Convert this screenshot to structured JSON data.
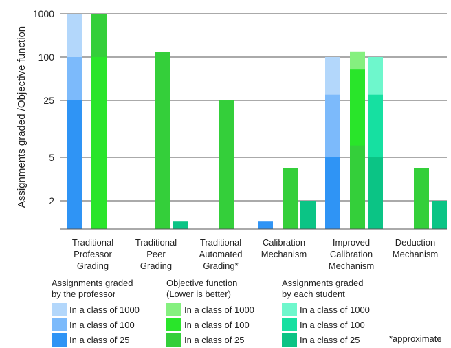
{
  "chart_data": {
    "type": "bar",
    "ylabel": "Assignments graded /Objective function",
    "y_scale": "log",
    "y_ticks": [
      {
        "value": 1000,
        "label": "1000"
      },
      {
        "value": 100,
        "label": "100"
      },
      {
        "value": 25,
        "label": "25"
      },
      {
        "value": 5,
        "label": "5"
      },
      {
        "value": 2,
        "label": "2"
      }
    ],
    "grid": true,
    "categories": [
      {
        "lines": [
          "Traditional",
          "Professor",
          "Grading"
        ]
      },
      {
        "lines": [
          "Traditional",
          "Peer",
          "Grading"
        ]
      },
      {
        "lines": [
          "Traditional",
          "Automated",
          "Grading*"
        ]
      },
      {
        "lines": [
          "Calibration",
          "Mechanism"
        ]
      },
      {
        "lines": [
          "Improved",
          "Calibration",
          "Mechanism"
        ]
      },
      {
        "lines": [
          "Deduction",
          "Mechanism"
        ]
      }
    ],
    "groups": [
      {
        "title_lines": [
          "Assignments graded",
          "by the professor"
        ],
        "series": [
          {
            "name": "In a class of 1000",
            "color": "#b3d7fb",
            "values": [
              1000,
              null,
              null,
              null,
              100,
              null
            ]
          },
          {
            "name": "In a class of 100",
            "color": "#7cbafb",
            "values": [
              100,
              null,
              null,
              null,
              30,
              null
            ]
          },
          {
            "name": "In a class of 25",
            "color": "#2f94f5",
            "values": [
              25,
              null,
              null,
              1.2,
              5,
              null
            ]
          }
        ]
      },
      {
        "title_lines": [
          "Objective function",
          "(Lower is better)"
        ],
        "series": [
          {
            "name": "In a class of 1000",
            "color": "#85f07f",
            "values": [
              1000,
              130,
              25,
              4,
              135,
              4
            ]
          },
          {
            "name": "In a class of 100",
            "color": "#29e52a",
            "values": [
              100,
              130,
              25,
              4,
              67,
              4
            ]
          },
          {
            "name": "In a class of 25",
            "color": "#34cf3a",
            "values": [
              1000,
              130,
              25,
              4,
              7,
              4
            ]
          }
        ]
      },
      {
        "title_lines": [
          "Assignments graded",
          "by each student"
        ],
        "series": [
          {
            "name": "In a class of 1000",
            "color": "#6ef7cc",
            "values": [
              null,
              null,
              null,
              null,
              100,
              null
            ]
          },
          {
            "name": "In a class of 100",
            "color": "#16e0a1",
            "values": [
              null,
              null,
              null,
              null,
              30,
              null
            ]
          },
          {
            "name": "In a class of 25",
            "color": "#0bc485",
            "values": [
              null,
              1.2,
              null,
              2,
              5,
              2
            ]
          }
        ]
      }
    ],
    "note": "*approximate"
  }
}
